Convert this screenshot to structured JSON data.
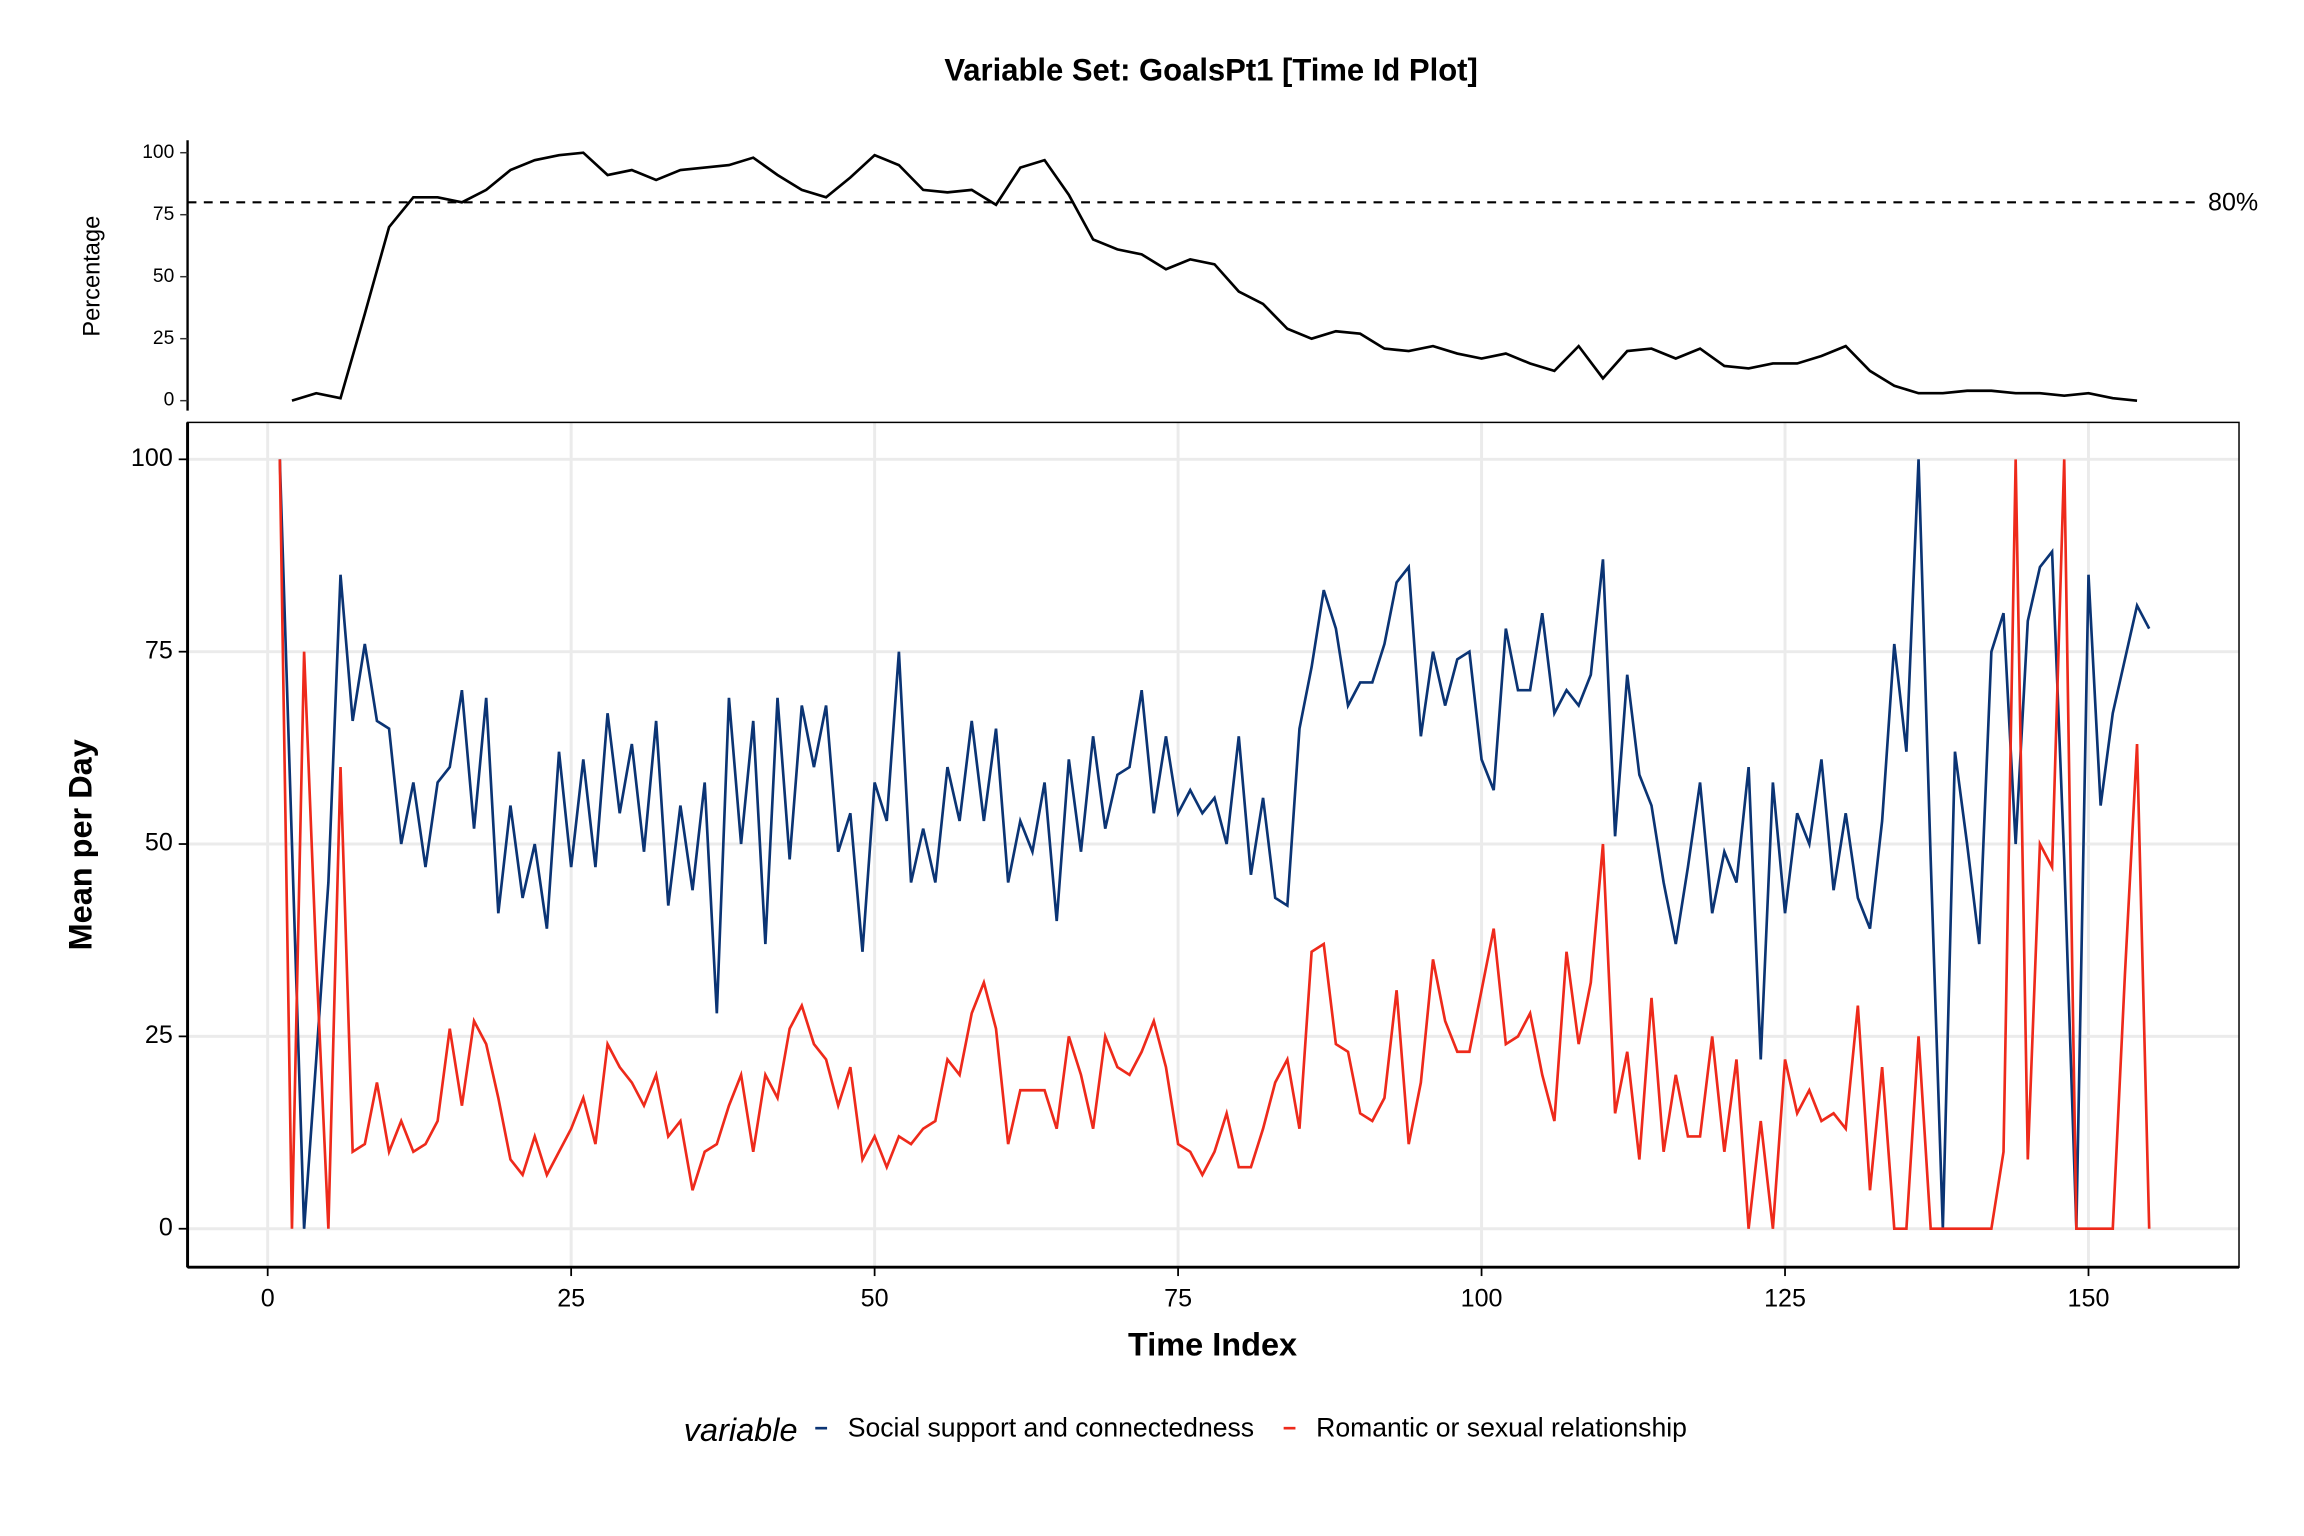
{
  "chart_data": [
    {
      "type": "line",
      "title": "Variable Set: GoalsPt1 [Time Id Plot]",
      "ylabel": "Percentage",
      "color": "#000000",
      "x": [
        2,
        4,
        6,
        8,
        10,
        12,
        14,
        16,
        18,
        20,
        22,
        24,
        26,
        28,
        30,
        32,
        34,
        36,
        38,
        40,
        42,
        44,
        46,
        48,
        50,
        52,
        54,
        56,
        58,
        60,
        62,
        64,
        66,
        68,
        70,
        72,
        74,
        76,
        78,
        80,
        82,
        84,
        86,
        88,
        90,
        92,
        94,
        96,
        98,
        100,
        102,
        104,
        106,
        108,
        110,
        112,
        114,
        116,
        118,
        120,
        122,
        124,
        126,
        128,
        130,
        132,
        134,
        136,
        138,
        140,
        142,
        144,
        146,
        148,
        150,
        152,
        154
      ],
      "values": [
        0,
        3,
        1,
        35,
        70,
        82,
        82,
        80,
        85,
        93,
        97,
        99,
        100,
        91,
        93,
        89,
        93,
        94,
        95,
        98,
        91,
        85,
        82,
        90,
        99,
        95,
        85,
        84,
        85,
        79,
        94,
        97,
        83,
        65,
        61,
        59,
        53,
        57,
        55,
        44,
        39,
        29,
        25,
        28,
        27,
        21,
        20,
        22,
        19,
        17,
        19,
        15,
        12,
        22,
        9,
        20,
        21,
        17,
        21,
        14,
        13,
        15,
        15,
        18,
        22,
        12,
        6,
        3,
        3,
        4,
        4,
        3,
        3,
        2,
        3,
        1,
        0
      ],
      "xlim": [
        -6.6,
        162.4
      ],
      "ylim": [
        -4,
        105
      ],
      "yticks": [
        0,
        25,
        50,
        75,
        100
      ],
      "hline": {
        "value": 80,
        "label": "80%"
      }
    },
    {
      "type": "line",
      "xlabel": "Time Index",
      "ylabel": "Mean per Day",
      "grid": true,
      "legend": "bottom",
      "legend_title": "variable",
      "x": [
        1,
        2,
        3,
        4,
        5,
        6,
        7,
        8,
        9,
        10,
        11,
        12,
        13,
        14,
        15,
        16,
        17,
        18,
        19,
        20,
        21,
        22,
        23,
        24,
        25,
        26,
        27,
        28,
        29,
        30,
        31,
        32,
        33,
        34,
        35,
        36,
        37,
        38,
        39,
        40,
        41,
        42,
        43,
        44,
        45,
        46,
        47,
        48,
        49,
        50,
        51,
        52,
        53,
        54,
        55,
        56,
        57,
        58,
        59,
        60,
        61,
        62,
        63,
        64,
        65,
        66,
        67,
        68,
        69,
        70,
        71,
        72,
        73,
        74,
        75,
        76,
        77,
        78,
        79,
        80,
        81,
        82,
        83,
        84,
        85,
        86,
        87,
        88,
        89,
        90,
        91,
        92,
        93,
        94,
        95,
        96,
        97,
        98,
        99,
        100,
        101,
        102,
        103,
        104,
        105,
        106,
        107,
        108,
        109,
        110,
        111,
        112,
        113,
        114,
        115,
        116,
        117,
        118,
        119,
        120,
        121,
        122,
        123,
        124,
        125,
        126,
        127,
        128,
        129,
        130,
        131,
        132,
        133,
        134,
        135,
        136,
        137,
        138,
        139,
        140,
        141,
        142,
        143,
        144,
        145,
        146,
        147,
        148,
        149,
        150,
        151,
        152,
        153,
        154,
        155
      ],
      "series": [
        {
          "name": "Social support and connectedness",
          "color": "#0b3474",
          "values": [
            100,
            50,
            0,
            22,
            45,
            85,
            66,
            76,
            66,
            65,
            50,
            58,
            47,
            58,
            60,
            70,
            52,
            69,
            41,
            55,
            43,
            50,
            39,
            62,
            47,
            61,
            47,
            67,
            54,
            63,
            49,
            66,
            42,
            55,
            44,
            58,
            28,
            69,
            50,
            66,
            37,
            69,
            48,
            68,
            60,
            68,
            49,
            54,
            36,
            58,
            53,
            75,
            45,
            52,
            45,
            60,
            53,
            66,
            53,
            65,
            45,
            53,
            49,
            58,
            40,
            61,
            49,
            64,
            52,
            59,
            60,
            70,
            54,
            64,
            54,
            57,
            54,
            56,
            50,
            64,
            46,
            56,
            43,
            42,
            65,
            73,
            83,
            78,
            68,
            71,
            71,
            76,
            84,
            86,
            64,
            75,
            68,
            74,
            75,
            61,
            57,
            78,
            70,
            70,
            80,
            67,
            70,
            68,
            72,
            87,
            51,
            72,
            59,
            55,
            45,
            37,
            47,
            58,
            41,
            49,
            45,
            60,
            22,
            58,
            41,
            54,
            50,
            61,
            44,
            54,
            43,
            39,
            53,
            76,
            62,
            100,
            48,
            0,
            62,
            50,
            37,
            75,
            80,
            50,
            79,
            86,
            88,
            48,
            0,
            85,
            55,
            67,
            74,
            81,
            78
          ]
        },
        {
          "name": "Romantic or sexual relationship",
          "color": "#ee2a1b",
          "values": [
            100,
            0,
            75,
            35,
            0,
            60,
            10,
            11,
            19,
            10,
            14,
            10,
            11,
            14,
            26,
            16,
            27,
            24,
            17,
            9,
            7,
            12,
            7,
            10,
            13,
            17,
            11,
            24,
            21,
            19,
            16,
            20,
            12,
            14,
            5,
            10,
            11,
            16,
            20,
            10,
            20,
            17,
            26,
            29,
            24,
            22,
            16,
            21,
            9,
            12,
            8,
            12,
            11,
            13,
            14,
            22,
            20,
            28,
            32,
            26,
            11,
            18,
            18,
            18,
            13,
            25,
            20,
            13,
            25,
            21,
            20,
            23,
            27,
            21,
            11,
            10,
            7,
            10,
            15,
            8,
            8,
            13,
            19,
            22,
            13,
            36,
            37,
            24,
            23,
            15,
            14,
            17,
            31,
            11,
            19,
            35,
            27,
            23,
            23,
            31,
            39,
            24,
            25,
            28,
            20,
            14,
            36,
            24,
            32,
            50,
            15,
            23,
            9,
            30,
            10,
            20,
            12,
            12,
            25,
            10,
            22,
            0,
            14,
            0,
            22,
            15,
            18,
            14,
            15,
            13,
            29,
            5,
            21,
            0,
            0,
            25,
            0,
            0,
            0,
            0,
            0,
            0,
            10,
            100,
            9,
            50,
            47,
            100,
            0,
            0,
            0,
            0,
            33,
            63,
            0
          ]
        }
      ],
      "xlim": [
        -6.6,
        162.4
      ],
      "ylim": [
        -5,
        104.8
      ],
      "xticks": [
        0,
        25,
        50,
        75,
        100,
        125,
        150
      ],
      "yticks": [
        0,
        25,
        50,
        75,
        100
      ]
    }
  ]
}
